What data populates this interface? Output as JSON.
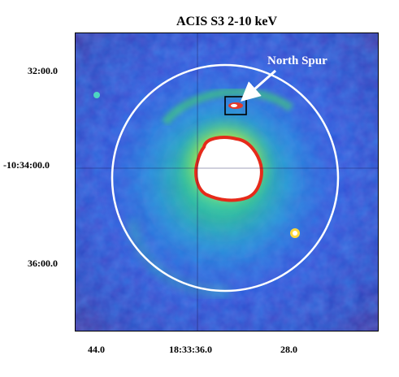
{
  "figure": {
    "title": "ACIS S3 2-10 keV",
    "y_axis_labels": [
      "32:00.0",
      "-10:34:00.0",
      "36:00.0"
    ],
    "x_axis_labels": [
      "44.0",
      "18:33:36.0",
      "28.0"
    ],
    "annotation": "North Spur",
    "colors": {
      "background_field": "#2f55d8",
      "ring_emission": "#2fd58a",
      "core_saturation": "#ffffff",
      "core_rim": "#e52a1a",
      "circle_outline": "#ffffff",
      "arrow": "#ffffff",
      "frame": "#000000"
    }
  }
}
